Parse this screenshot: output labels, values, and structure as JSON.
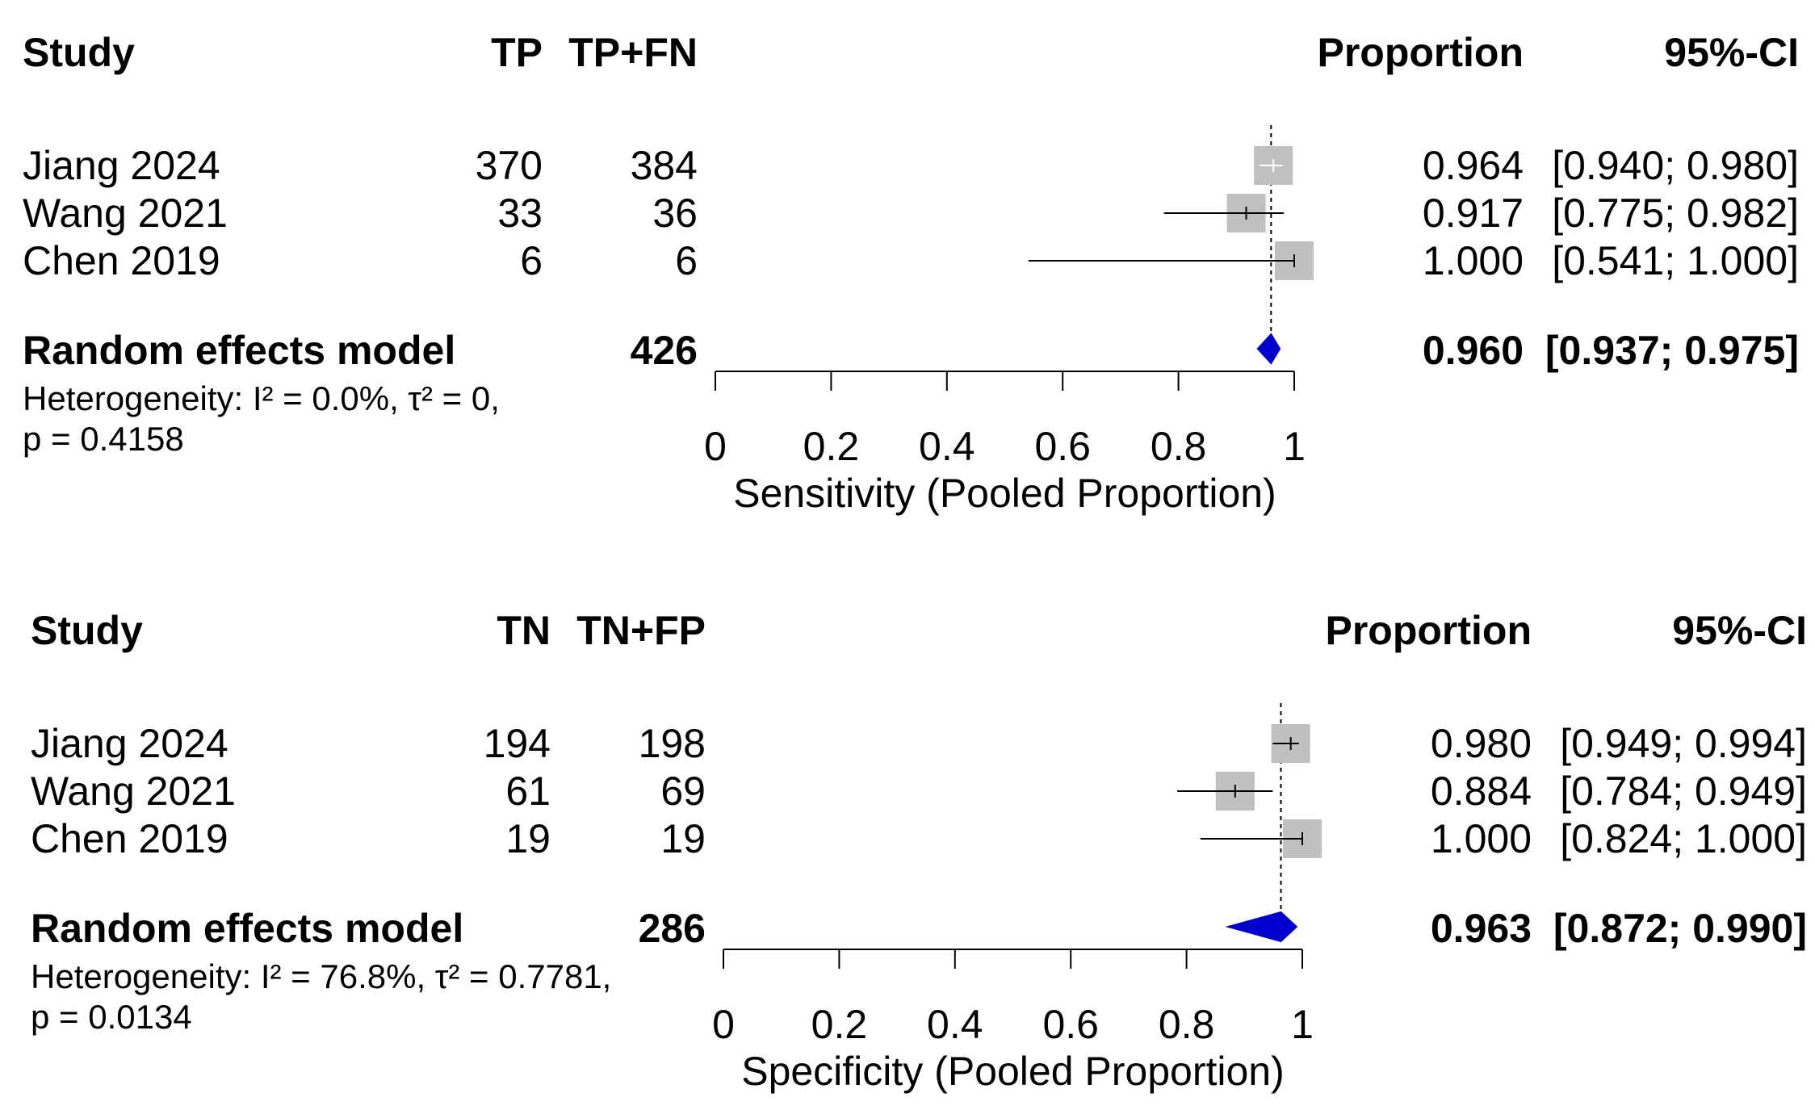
{
  "colors": {
    "box": "#c0c0c0",
    "ci": "#000000",
    "diamond": "#0000cc",
    "reference_line": "#000000"
  },
  "chart_data": [
    {
      "type": "forest",
      "title": "Sensitivity (Pooled Proportion)",
      "xlabel": "Sensitivity (Pooled Proportion)",
      "xlim": [
        0,
        1
      ],
      "xticks": [
        "0",
        "0.2",
        "0.4",
        "0.6",
        "0.8",
        "1"
      ],
      "headers": {
        "study": "Study",
        "events": "TP",
        "total": "TP+FN",
        "proportion": "Proportion",
        "ci": "95%-CI"
      },
      "studies": [
        {
          "name": "Jiang 2024",
          "events": "370",
          "total": "384",
          "prop_text": "0.964",
          "ci_text": "[0.940; 0.980]",
          "proportion": 0.964,
          "lower": 0.94,
          "upper": 0.98,
          "weight": 0.45
        },
        {
          "name": "Wang 2021",
          "events": "33",
          "total": "36",
          "prop_text": "0.917",
          "ci_text": "[0.775; 0.982]",
          "proportion": 0.917,
          "lower": 0.775,
          "upper": 0.982,
          "weight": 0.45
        },
        {
          "name": "Chen 2019",
          "events": "6",
          "total": "6",
          "prop_text": "1.000",
          "ci_text": "[0.541; 1.000]",
          "proportion": 1.0,
          "lower": 0.541,
          "upper": 1.0,
          "weight": 0.45
        }
      ],
      "pooled": {
        "label": "Random effects model",
        "total": "426",
        "prop_text": "0.960",
        "ci_text": "[0.937; 0.975]",
        "proportion": 0.96,
        "lower": 0.937,
        "upper": 0.975
      },
      "heterogeneity_line1": "Heterogeneity: I² = 0.0%, τ² = 0,",
      "heterogeneity_line2": "p = 0.4158"
    },
    {
      "type": "forest",
      "title": "Specificity (Pooled Proportion)",
      "xlabel": "Specificity (Pooled Proportion)",
      "xlim": [
        0,
        1
      ],
      "xticks": [
        "0",
        "0.2",
        "0.4",
        "0.6",
        "0.8",
        "1"
      ],
      "headers": {
        "study": "Study",
        "events": "TN",
        "total": "TN+FP",
        "proportion": "Proportion",
        "ci": "95%-CI"
      },
      "studies": [
        {
          "name": "Jiang 2024",
          "events": "194",
          "total": "198",
          "prop_text": "0.980",
          "ci_text": "[0.949; 0.994]",
          "proportion": 0.98,
          "lower": 0.949,
          "upper": 0.994,
          "weight": 0.45
        },
        {
          "name": "Wang 2021",
          "events": "61",
          "total": "69",
          "prop_text": "0.884",
          "ci_text": "[0.784; 0.949]",
          "proportion": 0.884,
          "lower": 0.784,
          "upper": 0.949,
          "weight": 0.45
        },
        {
          "name": "Chen 2019",
          "events": "19",
          "total": "19",
          "prop_text": "1.000",
          "ci_text": "[0.824; 1.000]",
          "proportion": 1.0,
          "lower": 0.824,
          "upper": 1.0,
          "weight": 0.45
        }
      ],
      "pooled": {
        "label": "Random effects model",
        "total": "286",
        "prop_text": "0.963",
        "ci_text": "[0.872; 0.990]",
        "proportion": 0.963,
        "lower": 0.872,
        "upper": 0.99
      },
      "heterogeneity_line1": "Heterogeneity: I² = 76.8%, τ² = 0.7781,",
      "heterogeneity_line2": "p = 0.0134"
    }
  ]
}
